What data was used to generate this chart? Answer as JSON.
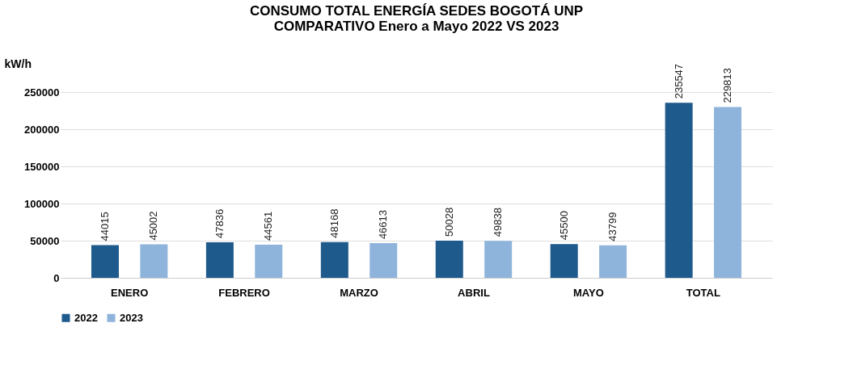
{
  "chart_data": {
    "type": "bar",
    "title": [
      "CONSUMO TOTAL ENERGÍA SEDES BOGOTÁ UNP",
      "COMPARATIVO Enero a Mayo 2022 VS 2023"
    ],
    "ylabel": "kW/h",
    "categories": [
      "ENERO",
      "FEBRERO",
      "MARZO",
      "ABRIL",
      "MAYO",
      "TOTAL"
    ],
    "series": [
      {
        "name": "2022",
        "color": "#1f5a8c",
        "values": [
          44015,
          47836,
          48168,
          50028,
          45500,
          235547
        ]
      },
      {
        "name": "2023",
        "color": "#8fb4dc",
        "values": [
          45002,
          44561,
          46613,
          49838,
          43799,
          229813
        ]
      }
    ],
    "ylim": [
      0,
      250000
    ],
    "yticks": [
      0,
      50000,
      100000,
      150000,
      200000,
      250000
    ],
    "grid": "y",
    "legend": "bottom",
    "data_labels": true
  }
}
